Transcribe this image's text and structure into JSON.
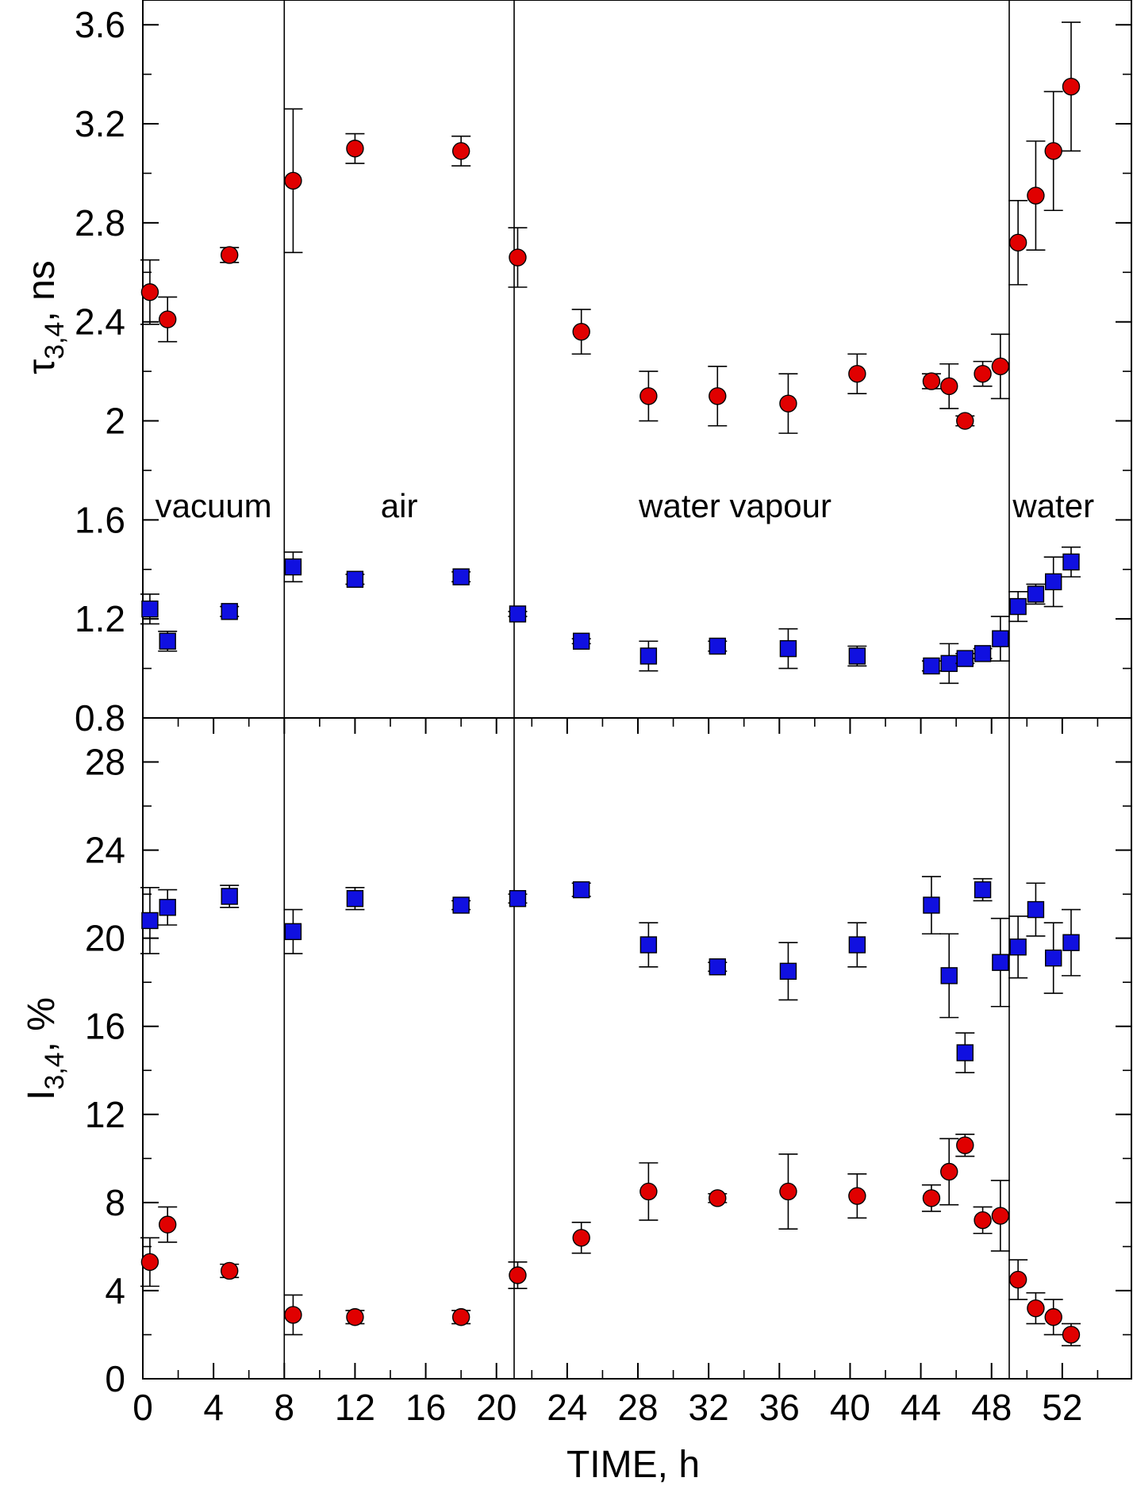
{
  "chart_data": [
    {
      "type": "scatter",
      "ylabel_symbol": "τ",
      "ylabel_subscript": "3,4",
      "ylabel_unit": ", ns",
      "ylim": [
        0.8,
        3.7
      ],
      "yticks": [
        0.8,
        1.2,
        1.6,
        2,
        2.4,
        2.8,
        3.2,
        3.6
      ],
      "ytick_labels": [
        "0.8",
        "1.2",
        "1.6",
        "2",
        "2.4",
        "2.8",
        "3.2",
        "3.6"
      ],
      "regions": [
        {
          "label": "vacuum",
          "x": 4
        },
        {
          "label": "air",
          "x": 14.5
        },
        {
          "label": "water vapour",
          "x": 33.5
        },
        {
          "label": "water",
          "x": 51.5
        }
      ],
      "series": [
        {
          "marker": "circle",
          "color": "#e00000",
          "points": [
            {
              "x": 0.4,
              "y": 2.52,
              "err": 0.13
            },
            {
              "x": 1.4,
              "y": 2.41,
              "err": 0.09
            },
            {
              "x": 4.9,
              "y": 2.67,
              "err": 0.03
            },
            {
              "x": 8.5,
              "y": 2.97,
              "err": 0.29
            },
            {
              "x": 12.0,
              "y": 3.1,
              "err": 0.06
            },
            {
              "x": 18.0,
              "y": 3.09,
              "err": 0.06
            },
            {
              "x": 21.2,
              "y": 2.66,
              "err": 0.12
            },
            {
              "x": 24.8,
              "y": 2.36,
              "err": 0.09
            },
            {
              "x": 28.6,
              "y": 2.1,
              "err": 0.1
            },
            {
              "x": 32.5,
              "y": 2.1,
              "err": 0.12
            },
            {
              "x": 36.5,
              "y": 2.07,
              "err": 0.12
            },
            {
              "x": 40.4,
              "y": 2.19,
              "err": 0.08
            },
            {
              "x": 44.6,
              "y": 2.16,
              "err": 0.03
            },
            {
              "x": 45.6,
              "y": 2.14,
              "err": 0.09
            },
            {
              "x": 46.5,
              "y": 2.0,
              "err": 0.02
            },
            {
              "x": 47.5,
              "y": 2.19,
              "err": 0.05
            },
            {
              "x": 48.5,
              "y": 2.22,
              "err": 0.13
            },
            {
              "x": 49.5,
              "y": 2.72,
              "err": 0.17
            },
            {
              "x": 50.5,
              "y": 2.91,
              "err": 0.22
            },
            {
              "x": 51.5,
              "y": 3.09,
              "err": 0.24
            },
            {
              "x": 52.5,
              "y": 3.35,
              "err": 0.26
            }
          ]
        },
        {
          "marker": "square",
          "color": "#1010e0",
          "points": [
            {
              "x": 0.4,
              "y": 1.24,
              "err": 0.06
            },
            {
              "x": 1.4,
              "y": 1.11,
              "err": 0.04
            },
            {
              "x": 4.9,
              "y": 1.23,
              "err": 0.02
            },
            {
              "x": 8.5,
              "y": 1.41,
              "err": 0.06
            },
            {
              "x": 12.0,
              "y": 1.36,
              "err": 0.02
            },
            {
              "x": 18.0,
              "y": 1.37,
              "err": 0.02
            },
            {
              "x": 21.2,
              "y": 1.22,
              "err": 0.01
            },
            {
              "x": 24.8,
              "y": 1.11,
              "err": 0.01
            },
            {
              "x": 28.6,
              "y": 1.05,
              "err": 0.06
            },
            {
              "x": 32.5,
              "y": 1.09,
              "err": 0.02
            },
            {
              "x": 36.5,
              "y": 1.08,
              "err": 0.08
            },
            {
              "x": 40.4,
              "y": 1.05,
              "err": 0.04
            },
            {
              "x": 44.6,
              "y": 1.01,
              "err": 0.02
            },
            {
              "x": 45.6,
              "y": 1.02,
              "err": 0.08
            },
            {
              "x": 46.5,
              "y": 1.04,
              "err": 0.02
            },
            {
              "x": 47.5,
              "y": 1.06,
              "err": 0.02
            },
            {
              "x": 48.5,
              "y": 1.12,
              "err": 0.09
            },
            {
              "x": 49.5,
              "y": 1.25,
              "err": 0.06
            },
            {
              "x": 50.5,
              "y": 1.3,
              "err": 0.04
            },
            {
              "x": 51.5,
              "y": 1.35,
              "err": 0.1
            },
            {
              "x": 52.5,
              "y": 1.43,
              "err": 0.06
            }
          ]
        }
      ]
    },
    {
      "type": "scatter",
      "ylabel_symbol": "I",
      "ylabel_subscript": "3,4",
      "ylabel_unit": ", %",
      "xlabel": "TIME, h",
      "xlim": [
        0,
        56
      ],
      "xticks": [
        0,
        4,
        8,
        12,
        16,
        20,
        24,
        28,
        32,
        36,
        40,
        44,
        48,
        52
      ],
      "xtick_labels": [
        "0",
        "4",
        "8",
        "12",
        "16",
        "20",
        "24",
        "28",
        "32",
        "36",
        "40",
        "44",
        "48",
        "52"
      ],
      "ylim": [
        0,
        30
      ],
      "yticks": [
        0,
        4,
        8,
        12,
        16,
        20,
        24,
        28
      ],
      "ytick_labels": [
        "0",
        "4",
        "8",
        "12",
        "16",
        "20",
        "24",
        "28"
      ],
      "series": [
        {
          "marker": "circle",
          "color": "#e00000",
          "points": [
            {
              "x": 0.4,
              "y": 5.3,
              "err": 1.1
            },
            {
              "x": 1.4,
              "y": 7.0,
              "err": 0.8
            },
            {
              "x": 4.9,
              "y": 4.9,
              "err": 0.3
            },
            {
              "x": 8.5,
              "y": 2.9,
              "err": 0.9
            },
            {
              "x": 12.0,
              "y": 2.8,
              "err": 0.3
            },
            {
              "x": 18.0,
              "y": 2.8,
              "err": 0.3
            },
            {
              "x": 21.2,
              "y": 4.7,
              "err": 0.6
            },
            {
              "x": 24.8,
              "y": 6.4,
              "err": 0.7
            },
            {
              "x": 28.6,
              "y": 8.5,
              "err": 1.3
            },
            {
              "x": 32.5,
              "y": 8.2,
              "err": 0.2
            },
            {
              "x": 36.5,
              "y": 8.5,
              "err": 1.7
            },
            {
              "x": 40.4,
              "y": 8.3,
              "err": 1.0
            },
            {
              "x": 44.6,
              "y": 8.2,
              "err": 0.6
            },
            {
              "x": 45.6,
              "y": 9.4,
              "err": 1.5
            },
            {
              "x": 46.5,
              "y": 10.6,
              "err": 0.5
            },
            {
              "x": 47.5,
              "y": 7.2,
              "err": 0.6
            },
            {
              "x": 48.5,
              "y": 7.4,
              "err": 1.6
            },
            {
              "x": 49.5,
              "y": 4.5,
              "err": 0.9
            },
            {
              "x": 50.5,
              "y": 3.2,
              "err": 0.7
            },
            {
              "x": 51.5,
              "y": 2.8,
              "err": 0.8
            },
            {
              "x": 52.5,
              "y": 2.0,
              "err": 0.5
            }
          ]
        },
        {
          "marker": "square",
          "color": "#1010e0",
          "points": [
            {
              "x": 0.4,
              "y": 20.8,
              "err": 1.5
            },
            {
              "x": 1.4,
              "y": 21.4,
              "err": 0.8
            },
            {
              "x": 4.9,
              "y": 21.9,
              "err": 0.5
            },
            {
              "x": 8.5,
              "y": 20.3,
              "err": 1.0
            },
            {
              "x": 12.0,
              "y": 21.8,
              "err": 0.5
            },
            {
              "x": 18.0,
              "y": 21.5,
              "err": 0.2
            },
            {
              "x": 21.2,
              "y": 21.8,
              "err": 0.2
            },
            {
              "x": 24.8,
              "y": 22.2,
              "err": 0.3
            },
            {
              "x": 28.6,
              "y": 19.7,
              "err": 1.0
            },
            {
              "x": 32.5,
              "y": 18.7,
              "err": 0.2
            },
            {
              "x": 36.5,
              "y": 18.5,
              "err": 1.3
            },
            {
              "x": 40.4,
              "y": 19.7,
              "err": 1.0
            },
            {
              "x": 44.6,
              "y": 21.5,
              "err": 1.3
            },
            {
              "x": 45.6,
              "y": 18.3,
              "err": 1.9
            },
            {
              "x": 46.5,
              "y": 14.8,
              "err": 0.9
            },
            {
              "x": 47.5,
              "y": 22.2,
              "err": 0.5
            },
            {
              "x": 48.5,
              "y": 18.9,
              "err": 2.0
            },
            {
              "x": 49.5,
              "y": 19.6,
              "err": 1.4
            },
            {
              "x": 50.5,
              "y": 21.3,
              "err": 1.2
            },
            {
              "x": 51.5,
              "y": 19.1,
              "err": 1.6
            },
            {
              "x": 52.5,
              "y": 19.8,
              "err": 1.5
            }
          ]
        }
      ]
    }
  ],
  "boundaries": [
    8,
    21,
    49
  ]
}
